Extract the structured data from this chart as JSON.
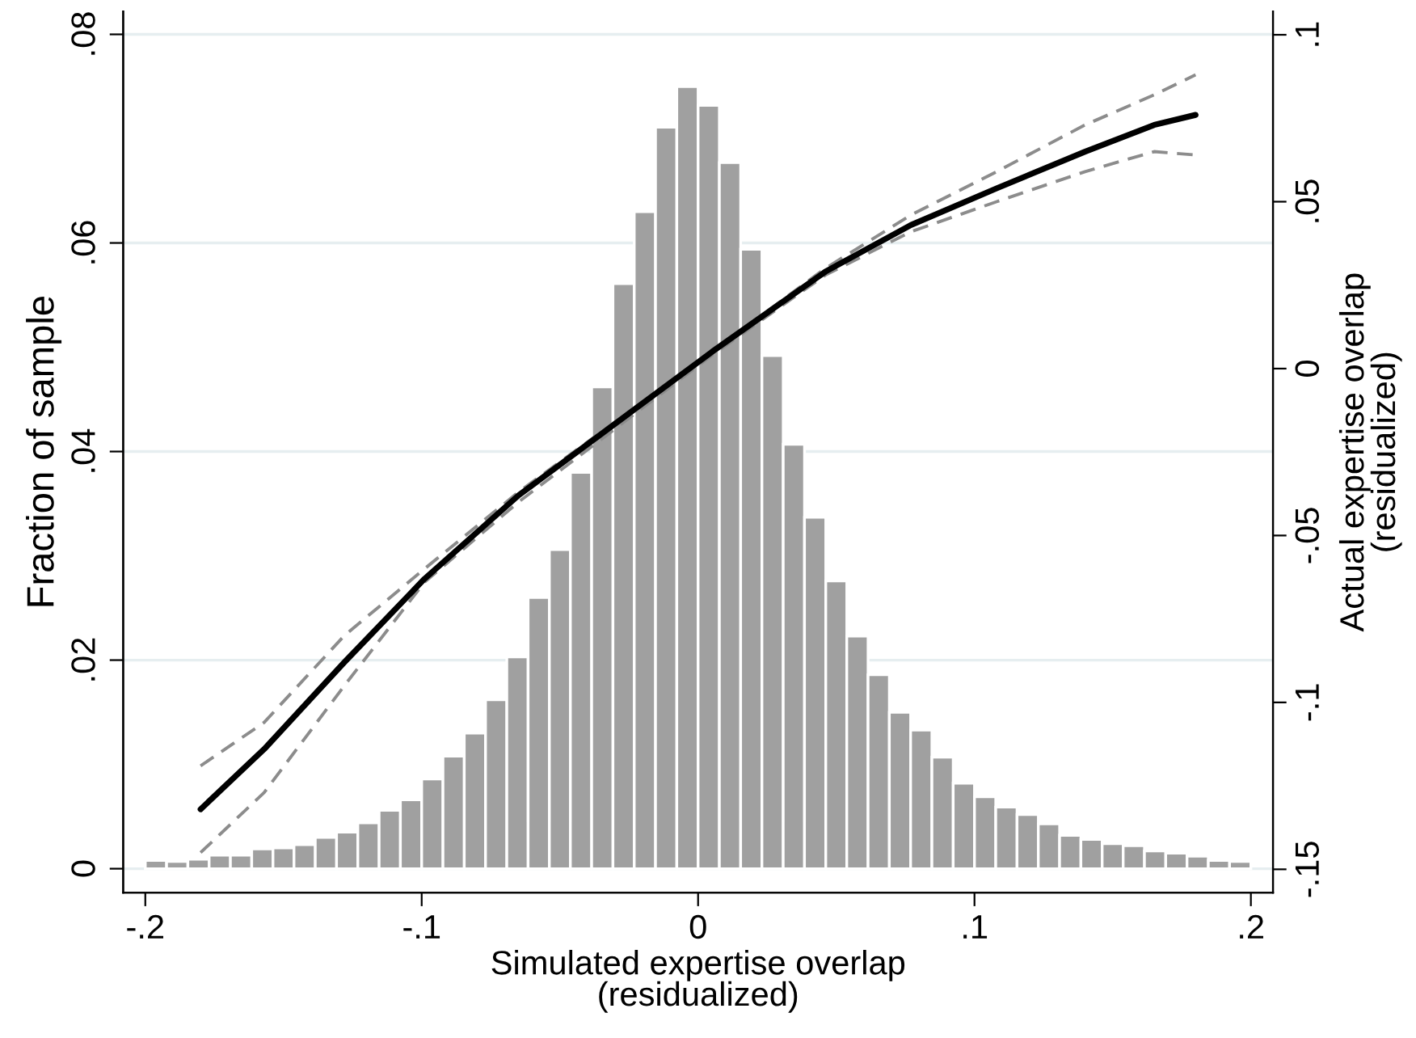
{
  "chart_data": {
    "type": "histogram",
    "xlabel": "Simulated expertise overlap\n(residualized)",
    "ylabel": "Fraction of sample",
    "y2label": "Actual expertise overlap\n(residualized)",
    "bins": [
      -0.2,
      -0.1923,
      -0.1846,
      -0.1769,
      -0.1692,
      -0.1615,
      -0.1538,
      -0.1462,
      -0.1385,
      -0.1308,
      -0.1231,
      -0.1154,
      -0.1077,
      -0.1,
      -0.0923,
      -0.0846,
      -0.0769,
      -0.0692,
      -0.0615,
      -0.0538,
      -0.0462,
      -0.0385,
      -0.0308,
      -0.0231,
      -0.0154,
      -0.0077,
      0,
      0.0077,
      0.0154,
      0.0231,
      0.0308,
      0.0385,
      0.0462,
      0.0538,
      0.0615,
      0.0692,
      0.0769,
      0.0846,
      0.0923,
      0.1,
      0.1077,
      0.1154,
      0.1231,
      0.1308,
      0.1385,
      0.1462,
      0.1538,
      0.1615,
      0.1692,
      0.1769,
      0.1846,
      0.1923,
      0.2
    ],
    "values": [
      0.0008,
      0.0007,
      0.0009,
      0.0013,
      0.0013,
      0.0019,
      0.002,
      0.0023,
      0.003,
      0.0035,
      0.0044,
      0.0056,
      0.0066,
      0.0086,
      0.0108,
      0.013,
      0.0162,
      0.0203,
      0.026,
      0.0306,
      0.038,
      0.0462,
      0.0561,
      0.063,
      0.0711,
      0.075,
      0.0732,
      0.0677,
      0.0594,
      0.0492,
      0.0407,
      0.0337,
      0.0276,
      0.0223,
      0.0186,
      0.015,
      0.0133,
      0.0107,
      0.0082,
      0.0069,
      0.0059,
      0.0052,
      0.0043,
      0.0032,
      0.0028,
      0.0024,
      0.0022,
      0.0017,
      0.0015,
      0.0012,
      0.0008,
      0.0007
    ],
    "color": "#a0a0a0",
    "series": [
      {
        "type": "line",
        "axis": "y2",
        "color": "#8c8c8c",
        "line_style": "dashed",
        "x": [
          -0.18,
          -0.157,
          -0.128,
          -0.099,
          -0.065,
          0.005,
          0.046,
          0.077,
          0.108,
          0.14,
          0.165,
          0.18
        ],
        "values": [
          -0.119,
          -0.106,
          -0.08,
          -0.06,
          -0.037,
          0.005,
          0.03,
          0.046,
          0.059,
          0.073,
          0.082,
          0.088
        ]
      },
      {
        "type": "line",
        "axis": "y2",
        "color": "#8c8c8c",
        "line_style": "dashed",
        "x": [
          -0.18,
          -0.157,
          -0.128,
          -0.099,
          -0.065,
          0.005,
          0.046,
          0.077,
          0.108,
          0.14,
          0.165,
          0.18
        ],
        "values": [
          -0.145,
          -0.127,
          -0.095,
          -0.064,
          -0.04,
          0.004,
          0.028,
          0.041,
          0.05,
          0.059,
          0.065,
          0.064
        ]
      },
      {
        "type": "line",
        "axis": "y2",
        "color": "#000000",
        "line_style": "solid",
        "x": [
          -0.18,
          -0.157,
          -0.128,
          -0.099,
          -0.065,
          0.005,
          0.046,
          0.077,
          0.108,
          0.14,
          0.165,
          0.18
        ],
        "values": [
          -0.132,
          -0.114,
          -0.088,
          -0.063,
          -0.038,
          0.005,
          0.029,
          0.043,
          0.054,
          0.065,
          0.073,
          0.076
        ]
      }
    ],
    "xlim": [
      -0.208,
      0.208
    ],
    "xticks": [
      {
        "value": -0.2,
        "label": "-.2"
      },
      {
        "value": -0.1,
        "label": "-.1"
      },
      0,
      {
        "value": 0.1,
        "label": ".1"
      },
      {
        "value": 0.2,
        "label": ".2"
      }
    ],
    "ylim": [
      -0.0023,
      0.0822
    ],
    "yticks": [
      0,
      {
        "value": 0.02,
        "label": ".02"
      },
      {
        "value": 0.04,
        "label": ".04"
      },
      {
        "value": 0.06,
        "label": ".06"
      },
      {
        "value": 0.08,
        "label": ".08"
      }
    ],
    "y2lim": [
      -0.157,
      0.107
    ],
    "y2ticks": [
      {
        "value": -0.15,
        "label": "-.15"
      },
      {
        "value": -0.1,
        "label": "-.1"
      },
      {
        "value": -0.05,
        "label": "-.05"
      },
      0,
      {
        "value": 0.05,
        "label": ".05"
      },
      {
        "value": 0.1,
        "label": ".1"
      }
    ],
    "grid": "y"
  }
}
